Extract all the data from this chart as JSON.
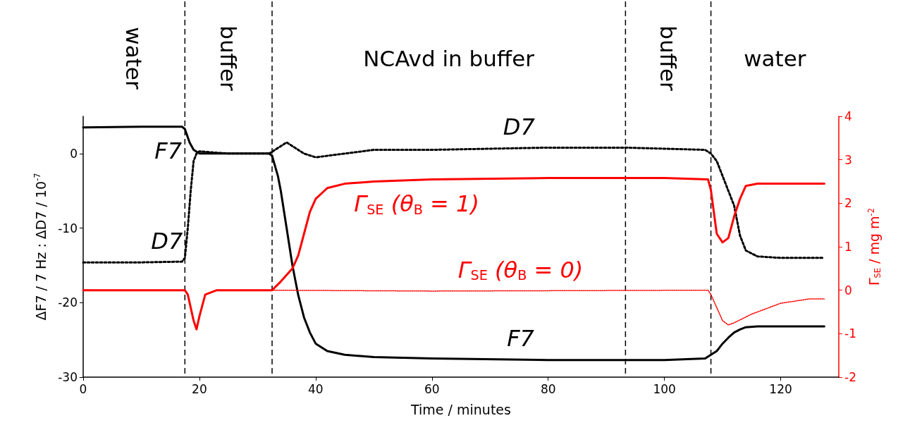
{
  "chart_data": {
    "type": "line",
    "xlabel": "Time / minutes",
    "ylabel": "ΔF7 / 7 Hz : ΔD7 / 10$^{-7}$",
    "y2label": "Γ$_{SE}$ / mg m$^{-2}$",
    "xlim": [
      0,
      130
    ],
    "xticks": [
      0,
      20,
      40,
      60,
      80,
      100,
      120
    ],
    "ylim": [
      -30,
      5
    ],
    "yticks": [
      -30,
      -20,
      -10,
      0
    ],
    "y2lim": [
      -2,
      4
    ],
    "y2ticks": [
      -2,
      -1,
      0,
      1,
      2,
      3,
      4
    ],
    "grid": false,
    "legend": false,
    "marker": "none",
    "series": [
      {
        "name": "F7",
        "color": "#000000",
        "line_style": "solid",
        "x": [
          0,
          10,
          17,
          17.5,
          18.3,
          19,
          20,
          25,
          32,
          32.5
        ],
        "values": [
          3.5,
          3.6,
          3.6,
          3.3,
          1.5,
          0.5,
          0,
          0,
          0,
          -0.3
        ]
      },
      {
        "name": "F7",
        "color": "#000000",
        "line_style": "solid",
        "x": [
          32.5,
          33.5,
          34,
          35,
          36,
          37,
          38,
          39,
          40,
          42,
          45,
          50,
          60,
          80,
          100,
          107,
          108,
          109,
          110,
          111,
          112,
          113,
          114,
          116,
          120,
          127.5
        ],
        "values": [
          -0.3,
          -3,
          -5,
          -10,
          -15,
          -19,
          -22,
          -24,
          -25.5,
          -26.5,
          -27,
          -27.3,
          -27.5,
          -27.7,
          -27.7,
          -27.5,
          -27,
          -26.5,
          -25.5,
          -24.7,
          -24,
          -23.6,
          -23.3,
          -23.2,
          -23.2,
          -23.2
        ]
      },
      {
        "name": "D7",
        "color": "#000000",
        "line_style": "dotted",
        "x": [
          0,
          10,
          17,
          17.5,
          18,
          18.5,
          19,
          19.5,
          20,
          25,
          32
        ],
        "values": [
          -14.6,
          -14.6,
          -14.5,
          -14,
          -10,
          -5,
          -1,
          0,
          0.3,
          0,
          0
        ]
      },
      {
        "name": "D7",
        "color": "#000000",
        "line_style": "dotted",
        "x": [
          32,
          33,
          35,
          36,
          38,
          40,
          45,
          50,
          60,
          80,
          93,
          107,
          108,
          109,
          110,
          111,
          112,
          113,
          114,
          116,
          120,
          127.5
        ],
        "values": [
          0,
          0.5,
          1.5,
          1,
          0,
          -0.5,
          0,
          0.5,
          0.5,
          0.8,
          0.8,
          0.5,
          0,
          -1,
          -3,
          -5,
          -7,
          -11,
          -13,
          -13.8,
          -14,
          -14
        ]
      },
      {
        "name": "Γ$_{SE}$ (θ$_{B}$ = 1)",
        "color": "#ff0000",
        "axis": "y2",
        "line_style": "solid",
        "x": [
          0,
          10,
          17.5,
          18,
          19,
          19.5,
          20,
          21,
          23,
          32.5,
          34,
          36,
          37,
          38,
          39,
          40,
          42,
          45,
          50,
          60,
          80,
          100,
          107.5,
          108,
          109,
          110,
          111,
          112,
          113,
          114,
          116,
          127.5
        ],
        "values": [
          0,
          0,
          0,
          -0.1,
          -0.7,
          -0.9,
          -0.6,
          -0.1,
          0,
          0,
          0.2,
          0.5,
          0.8,
          1.3,
          1.8,
          2.1,
          2.35,
          2.45,
          2.5,
          2.55,
          2.58,
          2.58,
          2.55,
          2.3,
          1.3,
          1.1,
          1.2,
          1.7,
          2.1,
          2.4,
          2.45,
          2.45
        ]
      },
      {
        "name": "Γ$_{SE}$ (θ$_{B}$ = 0)",
        "color": "#ff0000",
        "axis": "y2",
        "line_style": "dotted",
        "x": [
          32.5,
          60,
          107.5,
          108,
          109,
          110,
          111,
          112,
          115,
          120,
          125,
          127.5
        ],
        "values": [
          0,
          -0.02,
          0,
          -0.1,
          -0.4,
          -0.7,
          -0.8,
          -0.75,
          -0.55,
          -0.3,
          -0.2,
          -0.2
        ]
      }
    ],
    "ref_lines": [
      {
        "axis": "x",
        "value": 17.5,
        "color": "#000000",
        "line_style": "dashed"
      },
      {
        "axis": "x",
        "value": 32.5,
        "color": "#000000",
        "line_style": "dashed"
      },
      {
        "axis": "x",
        "value": 93.3,
        "color": "#000000",
        "line_style": "dashed"
      },
      {
        "axis": "x",
        "value": 108,
        "color": "#000000",
        "line_style": "dashed"
      }
    ],
    "annotations": [
      "water",
      "buffer",
      "NCAvd in buffer",
      "buffer",
      "water"
    ]
  }
}
